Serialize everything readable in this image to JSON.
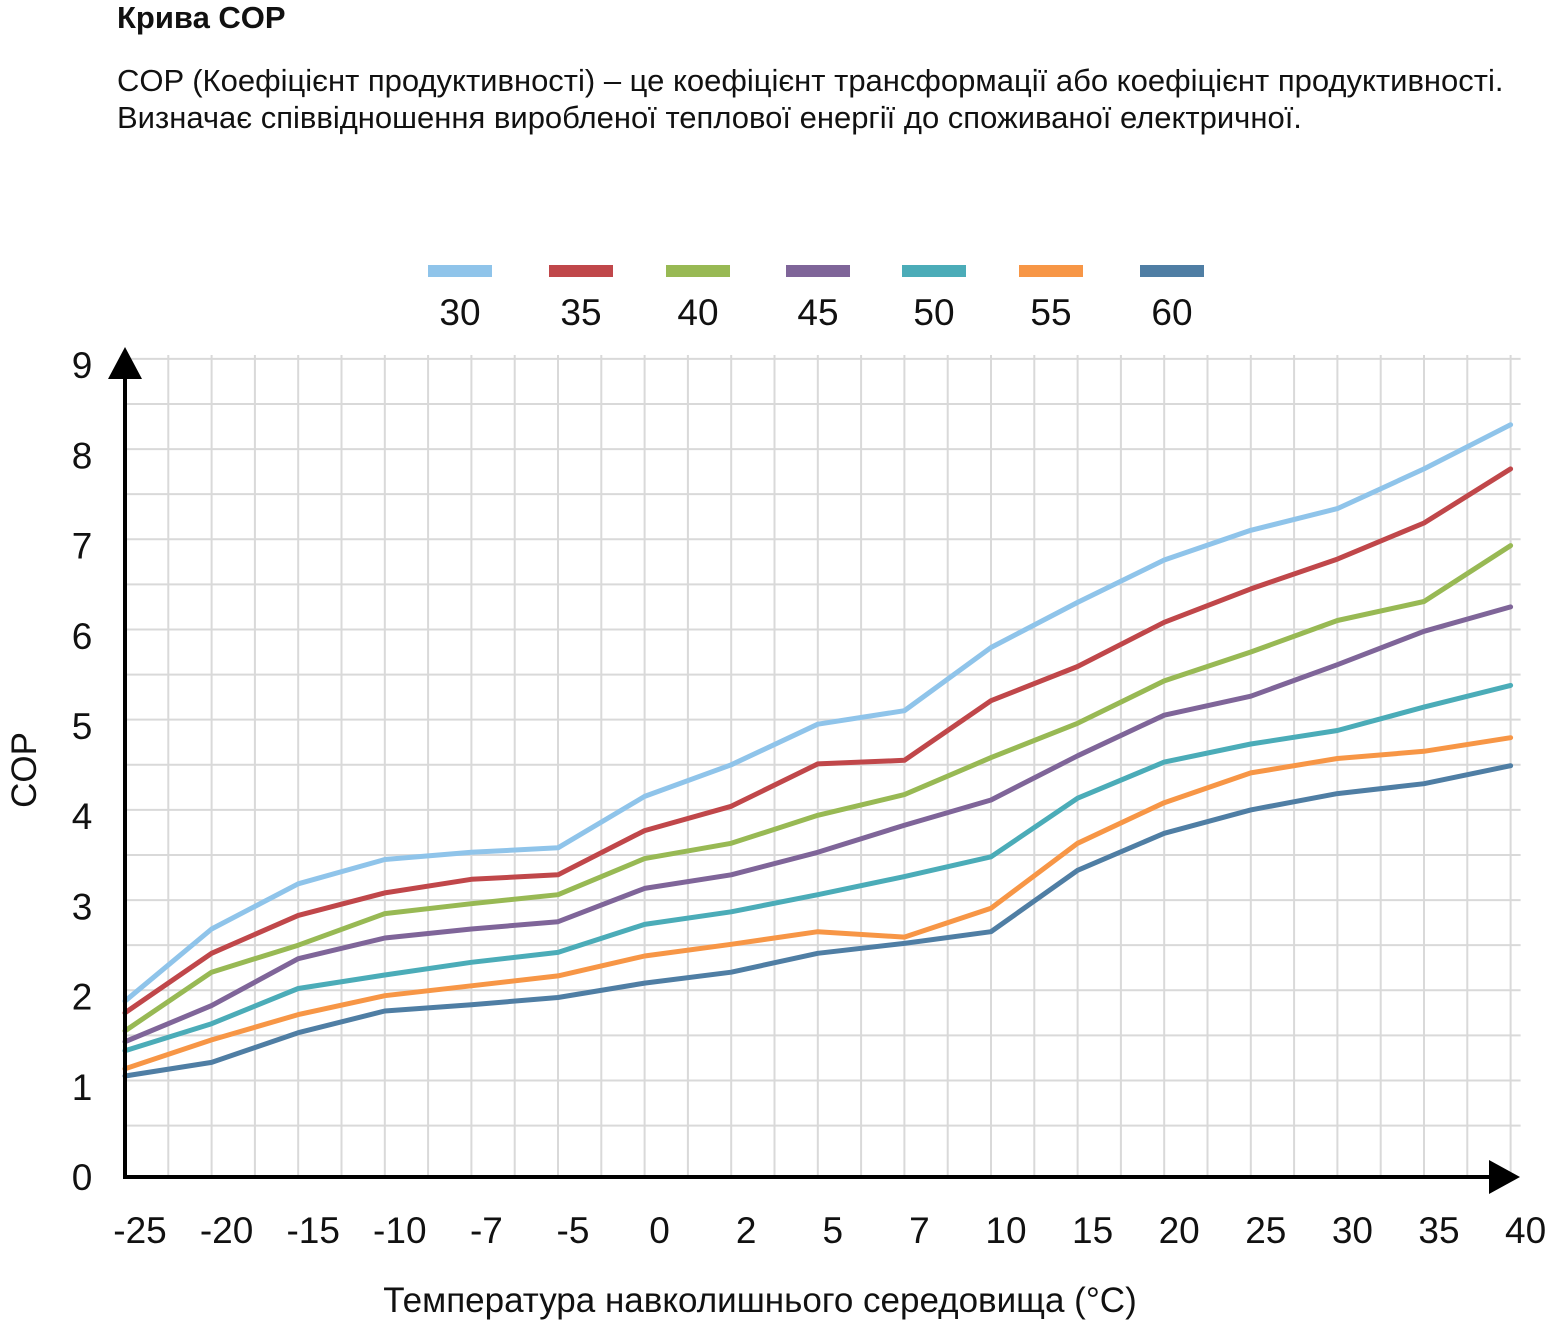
{
  "header": {
    "title": "Крива COP",
    "description": "COP (Коефіцієнт продуктивності) – це коефіцієнт трансформації або коефіцієнт продуктивності. Визначає співвідношення виробленої теплової енергії до споживаної електричної."
  },
  "chart_data": {
    "type": "line",
    "title": "",
    "xlabel": "Температура навколишнього середовища (°C)",
    "ylabel": "COP",
    "categories": [
      "-25",
      "-20",
      "-15",
      "-10",
      "-7",
      "-5",
      "0",
      "2",
      "5",
      "7",
      "10",
      "15",
      "20",
      "25",
      "30",
      "35",
      "40"
    ],
    "yticks": [
      "0",
      "1",
      "2",
      "3",
      "4",
      "5",
      "6",
      "7",
      "8",
      "9"
    ],
    "ylim": [
      0,
      9
    ],
    "grid": true,
    "legend_position": "top",
    "series": [
      {
        "name": "30",
        "color": "#8fc4ea",
        "values": [
          1.95,
          2.75,
          3.25,
          3.52,
          3.6,
          3.65,
          4.22,
          4.57,
          5.02,
          5.17,
          5.87,
          6.37,
          6.84,
          7.17,
          7.41,
          7.85,
          8.34
        ]
      },
      {
        "name": "35",
        "color": "#c0474a",
        "values": [
          1.82,
          2.48,
          2.9,
          3.15,
          3.3,
          3.35,
          3.84,
          4.11,
          4.58,
          4.62,
          5.28,
          5.66,
          6.15,
          6.52,
          6.85,
          7.25,
          7.85
        ]
      },
      {
        "name": "40",
        "color": "#98b954",
        "values": [
          1.62,
          2.27,
          2.57,
          2.92,
          3.03,
          3.13,
          3.53,
          3.7,
          4.01,
          4.24,
          4.65,
          5.03,
          5.5,
          5.82,
          6.17,
          6.38,
          7.0
        ]
      },
      {
        "name": "45",
        "color": "#7f6599",
        "values": [
          1.5,
          1.9,
          2.42,
          2.65,
          2.75,
          2.83,
          3.2,
          3.35,
          3.6,
          3.9,
          4.18,
          4.67,
          5.12,
          5.33,
          5.68,
          6.05,
          6.32
        ]
      },
      {
        "name": "50",
        "color": "#4bacb8",
        "values": [
          1.4,
          1.7,
          2.09,
          2.24,
          2.38,
          2.49,
          2.8,
          2.94,
          3.13,
          3.33,
          3.55,
          4.2,
          4.6,
          4.8,
          4.95,
          5.21,
          5.45
        ]
      },
      {
        "name": "55",
        "color": "#f79646",
        "values": [
          1.2,
          1.52,
          1.8,
          2.01,
          2.12,
          2.23,
          2.45,
          2.58,
          2.72,
          2.66,
          2.98,
          3.7,
          4.15,
          4.48,
          4.64,
          4.72,
          4.87
        ]
      },
      {
        "name": "60",
        "color": "#4f7ea4",
        "values": [
          1.12,
          1.27,
          1.6,
          1.84,
          1.91,
          1.99,
          2.15,
          2.27,
          2.48,
          2.59,
          2.72,
          3.4,
          3.81,
          4.07,
          4.25,
          4.36,
          4.56
        ]
      }
    ]
  }
}
